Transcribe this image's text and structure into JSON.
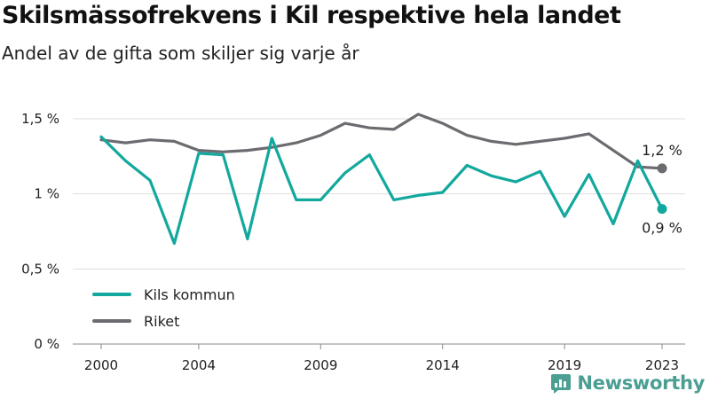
{
  "title": "Skilsmässofrekvens i Kil respektive hela landet",
  "subtitle": "Andel av de gifta som skiljer sig varje år",
  "brand": "Newsworthy",
  "chart_data": {
    "type": "line",
    "x": [
      2000,
      2001,
      2002,
      2003,
      2004,
      2005,
      2006,
      2007,
      2008,
      2009,
      2010,
      2011,
      2012,
      2013,
      2014,
      2015,
      2016,
      2017,
      2018,
      2019,
      2020,
      2021,
      2022,
      2023
    ],
    "series": [
      {
        "name": "Kils kommun",
        "color": "#12a89d",
        "values": [
          1.38,
          1.22,
          1.09,
          0.67,
          1.27,
          1.26,
          0.7,
          1.37,
          0.96,
          0.96,
          1.14,
          1.26,
          0.96,
          0.99,
          1.01,
          1.19,
          1.12,
          1.08,
          1.15,
          0.85,
          1.13,
          0.8,
          1.22,
          0.9
        ],
        "end_label": "0,9 %"
      },
      {
        "name": "Riket",
        "color": "#6d6b70",
        "values": [
          1.36,
          1.34,
          1.36,
          1.35,
          1.29,
          1.28,
          1.29,
          1.31,
          1.34,
          1.39,
          1.47,
          1.44,
          1.43,
          1.53,
          1.47,
          1.39,
          1.35,
          1.33,
          1.35,
          1.37,
          1.4,
          1.29,
          1.18,
          1.17
        ],
        "end_label": "1,2 %"
      }
    ],
    "y_ticks": [
      {
        "value": 0,
        "label": "0 %"
      },
      {
        "value": 0.5,
        "label": "0,5 %"
      },
      {
        "value": 1,
        "label": "1 %"
      },
      {
        "value": 1.5,
        "label": "1,5 %"
      }
    ],
    "x_ticks": [
      {
        "value": 2000,
        "label": "2000"
      },
      {
        "value": 2004,
        "label": "2004"
      },
      {
        "value": 2009,
        "label": "2009"
      },
      {
        "value": 2014,
        "label": "2014"
      },
      {
        "value": 2019,
        "label": "2019"
      },
      {
        "value": 2023,
        "label": "2023"
      }
    ],
    "ylim": [
      0,
      1.5
    ],
    "xlim": [
      2000,
      2023
    ],
    "grid": true,
    "legend_position": "bottom-left"
  }
}
